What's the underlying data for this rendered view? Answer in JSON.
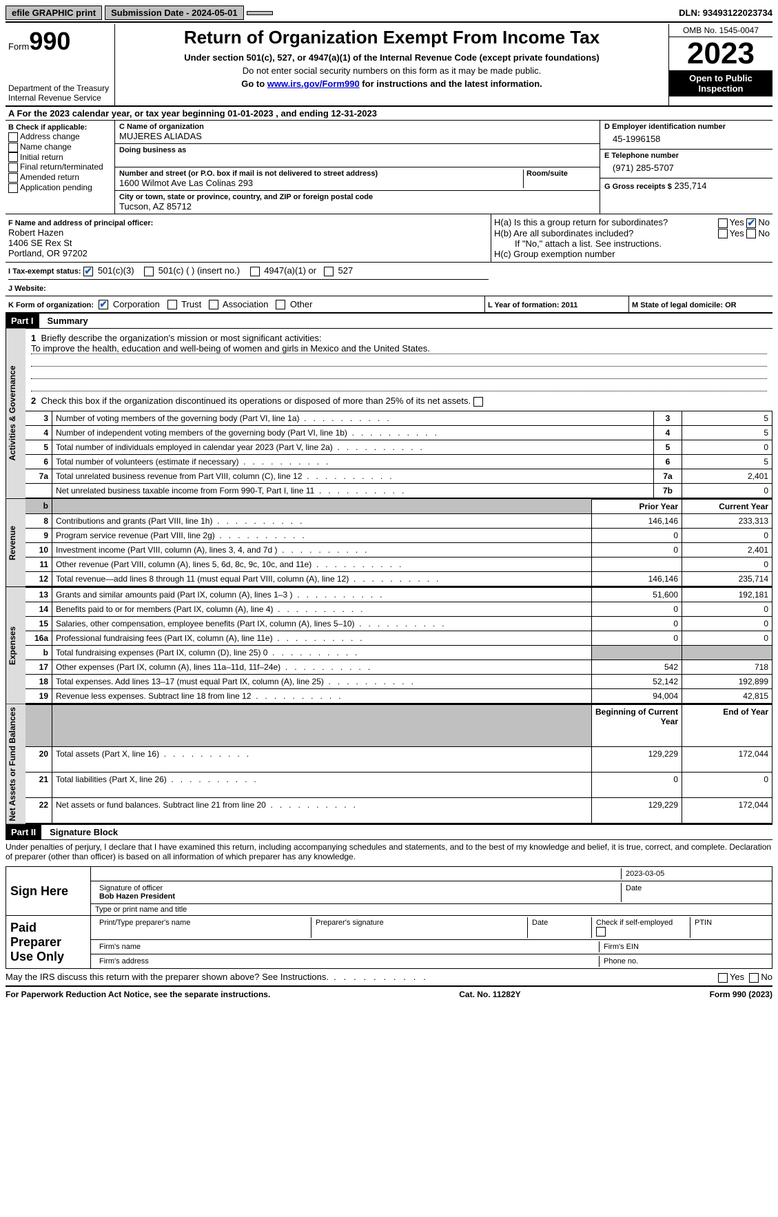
{
  "top": {
    "efile": "efile GRAPHIC print",
    "submission": "Submission Date - 2024-05-01",
    "dln": "DLN: 93493122023734"
  },
  "header": {
    "form_prefix": "Form",
    "form_num": "990",
    "title": "Return of Organization Exempt From Income Tax",
    "subtitle": "Under section 501(c), 527, or 4947(a)(1) of the Internal Revenue Code (except private foundations)",
    "note1": "Do not enter social security numbers on this form as it may be made public.",
    "note2_pre": "Go to ",
    "note2_link": "www.irs.gov/Form990",
    "note2_post": " for instructions and the latest information.",
    "dept": "Department of the Treasury\nInternal Revenue Service",
    "omb": "OMB No. 1545-0047",
    "year": "2023",
    "inspection": "Open to Public Inspection"
  },
  "A": "For the 2023 calendar year, or tax year beginning 01-01-2023   , and ending 12-31-2023",
  "B": {
    "label": "B Check if applicable:",
    "items": [
      "Address change",
      "Name change",
      "Initial return",
      "Final return/terminated",
      "Amended return",
      "Application pending"
    ]
  },
  "C": {
    "name_lbl": "C Name of organization",
    "name": "MUJERES ALIADAS",
    "dba_lbl": "Doing business as",
    "addr_lbl": "Number and street (or P.O. box if mail is not delivered to street address)",
    "addr": "1600 Wilmot Ave Las Colinas 293",
    "room_lbl": "Room/suite",
    "city_lbl": "City or town, state or province, country, and ZIP or foreign postal code",
    "city": "Tucson, AZ  85712"
  },
  "D": {
    "lbl": "D Employer identification number",
    "val": "45-1996158"
  },
  "E": {
    "lbl": "E Telephone number",
    "val": "(971) 285-5707"
  },
  "G": {
    "lbl": "G Gross receipts $",
    "val": "235,714"
  },
  "F": {
    "lbl": "F  Name and address of principal officer:",
    "name": "Robert Hazen",
    "addr1": "1406 SE Rex St",
    "addr2": "Portland, OR  97202"
  },
  "H": {
    "a": "H(a)  Is this a group return for subordinates?",
    "b": "H(b)  Are all subordinates included?",
    "b_note": "If \"No,\" attach a list. See instructions.",
    "c": "H(c)  Group exemption number",
    "yes": "Yes",
    "no": "No"
  },
  "I": {
    "lbl": "I   Tax-exempt status:",
    "opts": [
      "501(c)(3)",
      "501(c) (  ) (insert no.)",
      "4947(a)(1) or",
      "527"
    ]
  },
  "J": "J   Website:",
  "K": {
    "lbl": "K Form of organization:",
    "opts": [
      "Corporation",
      "Trust",
      "Association",
      "Other"
    ]
  },
  "L": "L Year of formation: 2011",
  "M": "M State of legal domicile: OR",
  "part1": {
    "hdr": "Part I",
    "title": "Summary",
    "l1_lbl": "Briefly describe the organization's mission or most significant activities:",
    "l1_val": "To improve the health, education and well-being of women and girls in Mexico and the United States.",
    "l2": "Check this box       if the organization discontinued its operations or disposed of more than 25% of its net assets.",
    "gov_lbl": "Activities & Governance",
    "rev_lbl": "Revenue",
    "exp_lbl": "Expenses",
    "net_lbl": "Net Assets or Fund Balances",
    "prior": "Prior Year",
    "current": "Current Year",
    "boy": "Beginning of Current Year",
    "eoy": "End of Year",
    "lines_gov": [
      {
        "n": "3",
        "d": "Number of voting members of the governing body (Part VI, line 1a)",
        "b": "3",
        "v": "5"
      },
      {
        "n": "4",
        "d": "Number of independent voting members of the governing body (Part VI, line 1b)",
        "b": "4",
        "v": "5"
      },
      {
        "n": "5",
        "d": "Total number of individuals employed in calendar year 2023 (Part V, line 2a)",
        "b": "5",
        "v": "0"
      },
      {
        "n": "6",
        "d": "Total number of volunteers (estimate if necessary)",
        "b": "6",
        "v": "5"
      },
      {
        "n": "7a",
        "d": "Total unrelated business revenue from Part VIII, column (C), line 12",
        "b": "7a",
        "v": "2,401"
      },
      {
        "n": "",
        "d": "Net unrelated business taxable income from Form 990-T, Part I, line 11",
        "b": "7b",
        "v": "0"
      }
    ],
    "lines_rev": [
      {
        "n": "8",
        "d": "Contributions and grants (Part VIII, line 1h)",
        "p": "146,146",
        "c": "233,313"
      },
      {
        "n": "9",
        "d": "Program service revenue (Part VIII, line 2g)",
        "p": "0",
        "c": "0"
      },
      {
        "n": "10",
        "d": "Investment income (Part VIII, column (A), lines 3, 4, and 7d )",
        "p": "0",
        "c": "2,401"
      },
      {
        "n": "11",
        "d": "Other revenue (Part VIII, column (A), lines 5, 6d, 8c, 9c, 10c, and 11e)",
        "p": "",
        "c": "0"
      },
      {
        "n": "12",
        "d": "Total revenue—add lines 8 through 11 (must equal Part VIII, column (A), line 12)",
        "p": "146,146",
        "c": "235,714"
      }
    ],
    "lines_exp": [
      {
        "n": "13",
        "d": "Grants and similar amounts paid (Part IX, column (A), lines 1–3 )",
        "p": "51,600",
        "c": "192,181"
      },
      {
        "n": "14",
        "d": "Benefits paid to or for members (Part IX, column (A), line 4)",
        "p": "0",
        "c": "0"
      },
      {
        "n": "15",
        "d": "Salaries, other compensation, employee benefits (Part IX, column (A), lines 5–10)",
        "p": "0",
        "c": "0"
      },
      {
        "n": "16a",
        "d": "Professional fundraising fees (Part IX, column (A), line 11e)",
        "p": "0",
        "c": "0"
      },
      {
        "n": "b",
        "d": "Total fundraising expenses (Part IX, column (D), line 25) 0",
        "p": "shade",
        "c": "shade"
      },
      {
        "n": "17",
        "d": "Other expenses (Part IX, column (A), lines 11a–11d, 11f–24e)",
        "p": "542",
        "c": "718"
      },
      {
        "n": "18",
        "d": "Total expenses. Add lines 13–17 (must equal Part IX, column (A), line 25)",
        "p": "52,142",
        "c": "192,899"
      },
      {
        "n": "19",
        "d": "Revenue less expenses. Subtract line 18 from line 12",
        "p": "94,004",
        "c": "42,815"
      }
    ],
    "lines_net": [
      {
        "n": "20",
        "d": "Total assets (Part X, line 16)",
        "p": "129,229",
        "c": "172,044"
      },
      {
        "n": "21",
        "d": "Total liabilities (Part X, line 26)",
        "p": "0",
        "c": "0"
      },
      {
        "n": "22",
        "d": "Net assets or fund balances. Subtract line 21 from line 20",
        "p": "129,229",
        "c": "172,044"
      }
    ]
  },
  "part2": {
    "hdr": "Part II",
    "title": "Signature Block",
    "decl": "Under penalties of perjury, I declare that I have examined this return, including accompanying schedules and statements, and to the best of my knowledge and belief, it is true, correct, and complete. Declaration of preparer (other than officer) is based on all information of which preparer has any knowledge.",
    "sign_here": "Sign Here",
    "sig_off": "Signature of officer",
    "sig_name": "Bob Hazen President",
    "sig_type": "Type or print name and title",
    "date_lbl": "Date",
    "date": "2023-03-05",
    "paid": "Paid Preparer Use Only",
    "p_name": "Print/Type preparer's name",
    "p_sig": "Preparer's signature",
    "p_date": "Date",
    "p_self": "Check       if self-employed",
    "p_ptin": "PTIN",
    "p_firm": "Firm's name",
    "p_ein": "Firm's EIN",
    "p_addr": "Firm's address",
    "p_phone": "Phone no.",
    "discuss": "May the IRS discuss this return with the preparer shown above? See Instructions."
  },
  "footer": {
    "left": "For Paperwork Reduction Act Notice, see the separate instructions.",
    "mid": "Cat. No. 11282Y",
    "right": "Form 990 (2023)"
  }
}
